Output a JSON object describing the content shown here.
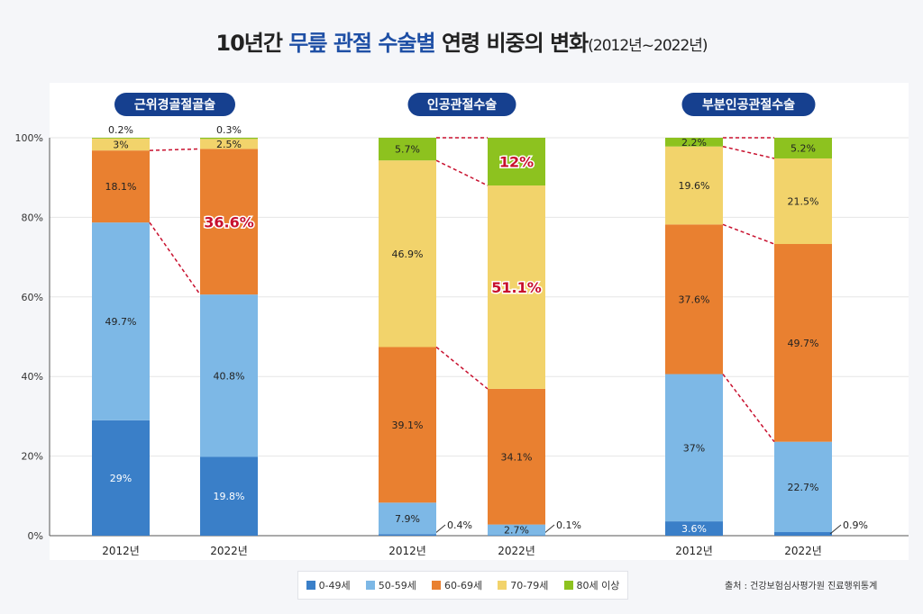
{
  "title": {
    "prefix": "10년간 ",
    "highlight": "무릎 관절 수술별",
    "suffix": " 연령 비중의 변화",
    "small": "(2012년~2022년)"
  },
  "source": "출처 : 건강보험심사평가원 진료행위통계",
  "chart_data": {
    "type": "bar",
    "stacked": true,
    "ylim": [
      0,
      100
    ],
    "yticks": [
      "0%",
      "20%",
      "40%",
      "60%",
      "80%",
      "100%"
    ],
    "grid": true,
    "legend_placement": "bottom",
    "categories": [
      "2012년",
      "2022년"
    ],
    "series_names": [
      "0-49세",
      "50-59세",
      "60-69세",
      "70-79세",
      "80세 이상"
    ],
    "colors": [
      "#3a7fc8",
      "#7db8e6",
      "#e98030",
      "#f2d36b",
      "#8dc21f"
    ],
    "highlight_color": "#c8102e",
    "groups": [
      {
        "title": "근위경골절골술",
        "bars": [
          {
            "label": "2012년",
            "values": [
              29,
              49.7,
              18.1,
              3,
              0.2
            ],
            "text": [
              "29%",
              "49.7%",
              "18.1%",
              "3%",
              "0.2%"
            ],
            "highlight": []
          },
          {
            "label": "2022년",
            "values": [
              19.8,
              40.8,
              36.6,
              2.5,
              0.3
            ],
            "text": [
              "19.8%",
              "40.8%",
              "36.6%",
              "2.5%",
              "0.3%"
            ],
            "highlight": [
              2
            ]
          }
        ],
        "connectors": [
          2,
          3
        ]
      },
      {
        "title": "인공관절수술",
        "bars": [
          {
            "label": "2012년",
            "values": [
              0.4,
              7.9,
              39.1,
              46.9,
              5.7
            ],
            "text": [
              "0.4%",
              "7.9%",
              "39.1%",
              "46.9%",
              "5.7%"
            ],
            "highlight": []
          },
          {
            "label": "2022년",
            "values": [
              0.1,
              2.7,
              34.1,
              51.1,
              12
            ],
            "text": [
              "0.1%",
              "2.7%",
              "34.1%",
              "51.1%",
              "12%"
            ],
            "highlight": [
              3,
              4
            ]
          }
        ],
        "connectors": [
          3,
          4,
          5
        ]
      },
      {
        "title": "부분인공관절수술",
        "bars": [
          {
            "label": "2012년",
            "values": [
              3.6,
              37,
              37.6,
              19.6,
              2.2
            ],
            "text": [
              "3.6%",
              "37%",
              "37.6%",
              "19.6%",
              "2.2%"
            ],
            "highlight": []
          },
          {
            "label": "2022년",
            "values": [
              0.9,
              22.7,
              49.7,
              21.5,
              5.2
            ],
            "text": [
              "0.9%",
              "22.7%",
              "49.7%",
              "21.5%",
              "5.2%"
            ],
            "highlight": []
          }
        ],
        "connectors": [
          2,
          3,
          4,
          5
        ]
      }
    ]
  }
}
